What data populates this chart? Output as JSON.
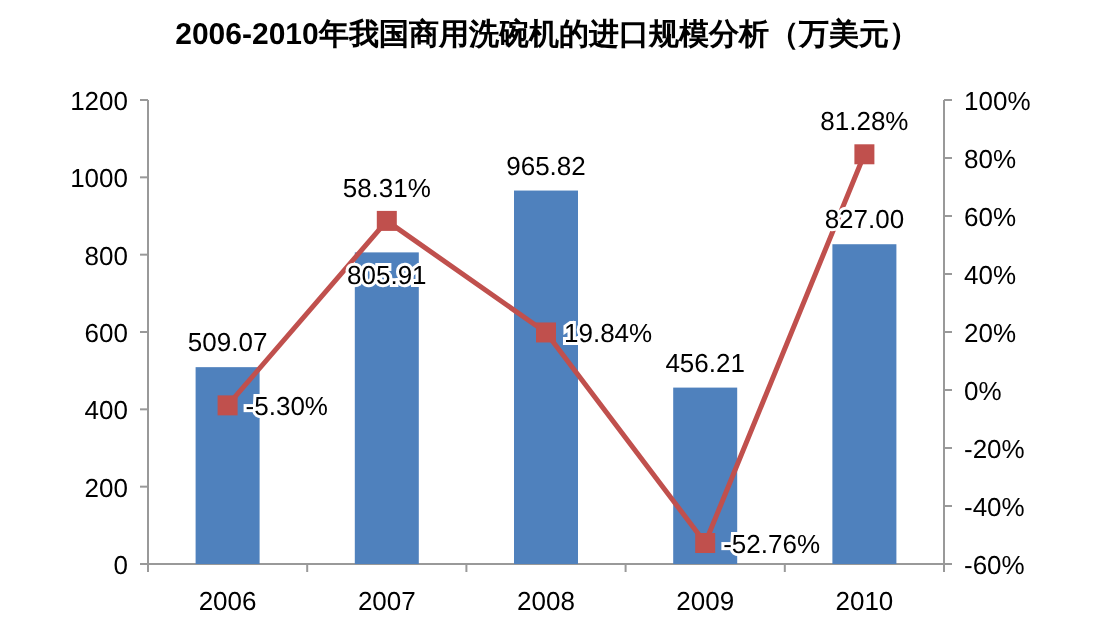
{
  "chart_data": {
    "type": "bar",
    "title": "2006-2010年我国商用洗碗机的进口规模分析（万美元）",
    "categories": [
      "2006",
      "2007",
      "2008",
      "2009",
      "2010"
    ],
    "series": [
      {
        "color": "#4f81bd",
        "values": [
          509.07,
          805.91,
          965.82,
          456.21,
          827.0
        ],
        "value_labels": [
          "509.07",
          "805.91",
          "965.82",
          "456.21",
          "827.00"
        ]
      },
      {
        "type": "line",
        "axis": "y2",
        "color": "#c0504d",
        "marker": "square",
        "values": [
          -5.3,
          58.31,
          19.84,
          -52.76,
          81.28
        ],
        "value_labels": [
          "-5.30%",
          "58.31%",
          "19.84%",
          "-52.76%",
          "81.28%"
        ]
      }
    ],
    "ylim": [
      0,
      1200
    ],
    "yticks": [
      0,
      200,
      400,
      600,
      800,
      1000,
      1200
    ],
    "y2lim": [
      -60,
      100
    ],
    "y2ticks": [
      {
        "value": -60,
        "label": "-60%"
      },
      {
        "value": -40,
        "label": "-40%"
      },
      {
        "value": -20,
        "label": "-20%"
      },
      {
        "value": 0,
        "label": "0%"
      },
      {
        "value": 20,
        "label": "20%"
      },
      {
        "value": 40,
        "label": "40%"
      },
      {
        "value": 60,
        "label": "60%"
      },
      {
        "value": 80,
        "label": "80%"
      },
      {
        "value": 100,
        "label": "100%"
      }
    ]
  }
}
